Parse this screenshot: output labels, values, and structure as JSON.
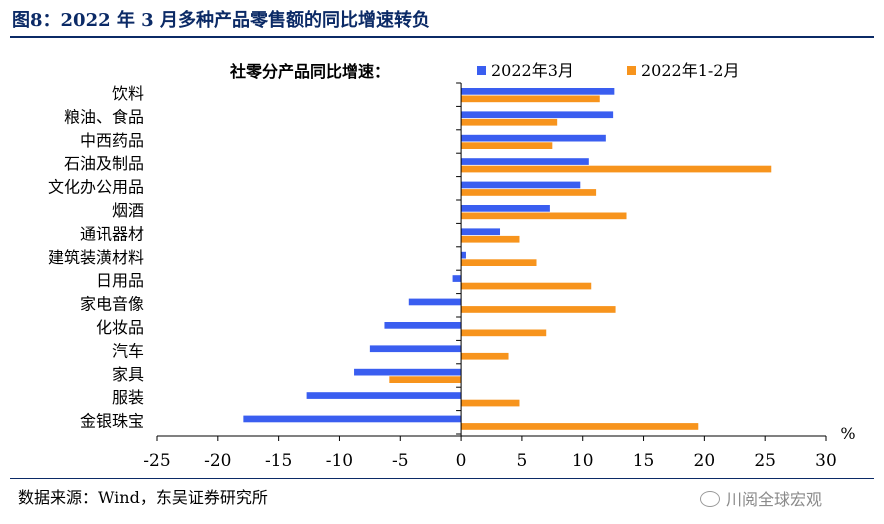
{
  "figure": {
    "title": "图8：2022 年 3 月多种产品零售额的同比增速转负",
    "source": "数据来源：Wind，东吴证券研究所",
    "watermark": "川阅全球宏观"
  },
  "colors": {
    "series1": "#3a5ef0",
    "series2": "#f7941d",
    "axis": "#000000",
    "title": "#0b2a66"
  },
  "chart_data": {
    "type": "bar",
    "orientation": "horizontal",
    "title": "社零分产品同比增速：",
    "xlabel": "%",
    "xlim": [
      -25,
      30
    ],
    "xticks": [
      -25,
      -20,
      -15,
      -10,
      -5,
      0,
      5,
      10,
      15,
      20,
      25,
      30
    ],
    "grid": false,
    "legend_position": "top",
    "categories": [
      "饮料",
      "粮油、食品",
      "中西药品",
      "石油及制品",
      "文化办公用品",
      "烟酒",
      "通讯器材",
      "建筑装潢材料",
      "日用品",
      "家电音像",
      "化妆品",
      "汽车",
      "家具",
      "服装",
      "金银珠宝"
    ],
    "series": [
      {
        "name": "2022年3月",
        "values": [
          12.6,
          12.5,
          11.9,
          10.5,
          9.8,
          7.3,
          3.2,
          0.4,
          -0.7,
          -4.3,
          -6.3,
          -7.5,
          -8.8,
          -12.7,
          -17.9
        ]
      },
      {
        "name": "2022年1-2月",
        "values": [
          11.4,
          7.9,
          7.5,
          25.5,
          11.1,
          13.6,
          4.8,
          6.2,
          10.7,
          12.7,
          7.0,
          3.9,
          -5.9,
          4.8,
          19.5
        ]
      }
    ]
  }
}
